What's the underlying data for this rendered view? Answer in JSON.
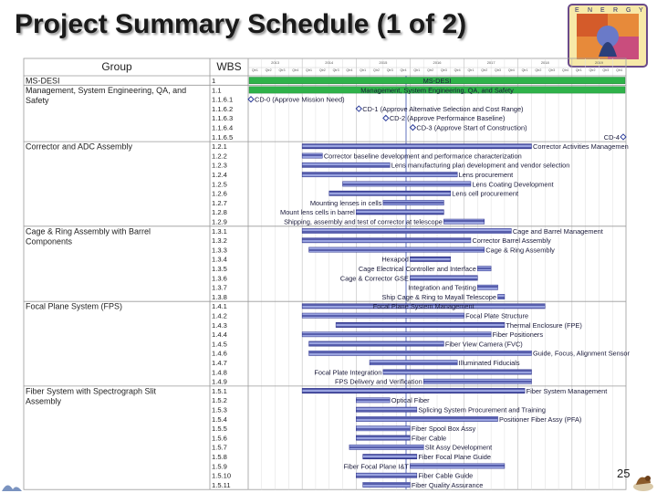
{
  "title": "Project Summary Schedule (1 of 2)",
  "page_number": "25",
  "logo": {
    "letters": [
      "E",
      "N",
      "E",
      "R",
      "G",
      "Y"
    ]
  },
  "headers": {
    "group": "Group",
    "wbs": "WBS"
  },
  "timeline": {
    "years": [
      "2013",
      "2014",
      "2015",
      "2016",
      "2017",
      "2018",
      "2019"
    ],
    "quarters": [
      "Qtr1",
      "Qtr2",
      "Qtr3",
      "Qtr4"
    ]
  },
  "groups": [
    {
      "name": "MS-DESI",
      "rows": [
        0
      ]
    },
    {
      "name": "Management, System Engineering, QA, and Safety",
      "rows": [
        1,
        2,
        3,
        4,
        5,
        6
      ]
    },
    {
      "name": "Corrector and ADC Assembly",
      "rows": [
        7,
        8,
        9,
        10,
        11,
        12,
        13,
        14,
        15
      ]
    },
    {
      "name": "Cage & Ring Assembly with Barrel Components",
      "rows": [
        16,
        17,
        18,
        19,
        20,
        21,
        22,
        23
      ]
    },
    {
      "name": "Focal Plane System (FPS)",
      "rows": [
        24,
        25,
        26,
        27,
        28,
        29,
        30,
        31,
        32
      ]
    },
    {
      "name": "Fiber System with Spectrograph Slit Assembly",
      "rows": [
        33,
        34,
        35,
        36,
        37,
        38,
        39,
        40,
        41,
        42,
        43
      ]
    }
  ],
  "rows": [
    {
      "wbs": "1",
      "type": "summary",
      "start": 0,
      "end": 28,
      "label": "MS-DESI",
      "label_pos": "on"
    },
    {
      "wbs": "1.1",
      "type": "summary",
      "start": 0,
      "end": 28,
      "label": "Management, System Engineering, QA, and Safety",
      "label_pos": "on"
    },
    {
      "wbs": "1.1.6.1",
      "type": "milestone",
      "start": 0,
      "end": 0,
      "label": "CD-0 (Approve Mission Need)",
      "label_pos": "right"
    },
    {
      "wbs": "1.1.6.2",
      "type": "milestone",
      "start": 8,
      "end": 8,
      "label": "CD-1 (Approve Alternative Selection and Cost Range)",
      "label_pos": "right"
    },
    {
      "wbs": "1.1.6.3",
      "type": "milestone",
      "start": 10,
      "end": 10,
      "label": "CD-2 (Approve Performance Baseline)",
      "label_pos": "right"
    },
    {
      "wbs": "1.1.6.4",
      "type": "milestone",
      "start": 12,
      "end": 12,
      "label": "CD-3 (Approve Start of Construction)",
      "label_pos": "right"
    },
    {
      "wbs": "1.1.6.5",
      "type": "milestone",
      "start": 28,
      "end": 28,
      "label": "CD-4",
      "label_pos": "left"
    },
    {
      "wbs": "1.2.1",
      "type": "bar",
      "start": 4,
      "end": 21,
      "label": "Corrector Activities Managemen",
      "label_pos": "right"
    },
    {
      "wbs": "1.2.2",
      "type": "bar",
      "start": 4,
      "end": 5.5,
      "label": "Corrector baseline development and performance characterization",
      "label_pos": "right"
    },
    {
      "wbs": "1.2.3",
      "type": "bar",
      "start": 4,
      "end": 10.5,
      "label": "Lens manufacturing plan development and vendor selection",
      "label_pos": "right"
    },
    {
      "wbs": "1.2.4",
      "type": "bar",
      "start": 4,
      "end": 15.5,
      "label": "Lens procurement",
      "label_pos": "right"
    },
    {
      "wbs": "1.2.5",
      "type": "bar",
      "start": 7,
      "end": 16.5,
      "label": "Lens Coating Development",
      "label_pos": "right"
    },
    {
      "wbs": "1.2.6",
      "type": "bar",
      "start": 6,
      "end": 15,
      "label": "Lens cell procurement",
      "label_pos": "right"
    },
    {
      "wbs": "1.2.7",
      "type": "bar",
      "start": 10,
      "end": 14.5,
      "label": "Mounting lenses in cells",
      "label_pos": "left"
    },
    {
      "wbs": "1.2.8",
      "type": "bar",
      "start": 8,
      "end": 14.5,
      "label": "Mount lens cells in barrel",
      "label_pos": "left"
    },
    {
      "wbs": "1.2.9",
      "type": "bar",
      "start": 14.5,
      "end": 17.5,
      "label": "Shipping, assembly and test of corrector at telescope",
      "label_pos": "left"
    },
    {
      "wbs": "1.3.1",
      "type": "bar",
      "start": 4,
      "end": 19.5,
      "label": "Cage and Barrel Management",
      "label_pos": "right"
    },
    {
      "wbs": "1.3.2",
      "type": "bar",
      "start": 4,
      "end": 16.5,
      "label": "Corrector Barrel Assembly",
      "label_pos": "right"
    },
    {
      "wbs": "1.3.3",
      "type": "bar",
      "start": 4.5,
      "end": 17.5,
      "label": "Cage & Ring Assembly",
      "label_pos": "right"
    },
    {
      "wbs": "1.3.4",
      "type": "bar",
      "start": 12,
      "end": 15,
      "label": "Hexapod",
      "label_pos": "left"
    },
    {
      "wbs": "1.3.5",
      "type": "bar",
      "start": 17,
      "end": 18,
      "label": "Cage Electrical Controller and Interface",
      "label_pos": "left"
    },
    {
      "wbs": "1.3.6",
      "type": "bar",
      "start": 12,
      "end": 17,
      "label": "Cage & Corrector GSE",
      "label_pos": "left"
    },
    {
      "wbs": "1.3.7",
      "type": "bar",
      "start": 17,
      "end": 18.5,
      "label": "Integration and Testing",
      "label_pos": "left"
    },
    {
      "wbs": "1.3.8",
      "type": "bar",
      "start": 18.5,
      "end": 19,
      "label": "Ship Cage & Ring to Mayall Telescope",
      "label_pos": "left"
    },
    {
      "wbs": "1.4.1",
      "type": "bar",
      "start": 4,
      "end": 22,
      "label": "Focal Plane System Management",
      "label_pos": "on"
    },
    {
      "wbs": "1.4.2",
      "type": "bar",
      "start": 4,
      "end": 16,
      "label": "Focal Plate Structure",
      "label_pos": "right"
    },
    {
      "wbs": "1.4.3",
      "type": "bar",
      "start": 6.5,
      "end": 19,
      "label": "Thermal Enclosure (FPE)",
      "label_pos": "right"
    },
    {
      "wbs": "1.4.4",
      "type": "bar",
      "start": 4,
      "end": 18,
      "label": "Fiber Positioners",
      "label_pos": "right"
    },
    {
      "wbs": "1.4.5",
      "type": "bar",
      "start": 4.5,
      "end": 14.5,
      "label": "Fiber View Camera (FVC)",
      "label_pos": "right"
    },
    {
      "wbs": "1.4.6",
      "type": "bar",
      "start": 4.5,
      "end": 21,
      "label": "Guide, Focus, Alignment Sensor",
      "label_pos": "right"
    },
    {
      "wbs": "1.4.7",
      "type": "bar",
      "start": 9,
      "end": 15.5,
      "label": "Illuminated Fiducials",
      "label_pos": "right"
    },
    {
      "wbs": "1.4.8",
      "type": "bar",
      "start": 10,
      "end": 21,
      "label": "Focal Plate Integration",
      "label_pos": "left"
    },
    {
      "wbs": "1.4.9",
      "type": "bar",
      "start": 13,
      "end": 21,
      "label": "FPS Delivery and Verification",
      "label_pos": "left"
    },
    {
      "wbs": "1.5.1",
      "type": "bar",
      "start": 4,
      "end": 20.5,
      "label": "Fiber System Management",
      "label_pos": "right"
    },
    {
      "wbs": "1.5.2",
      "type": "bar",
      "start": 8,
      "end": 10.5,
      "label": "Optical Fiber",
      "label_pos": "right"
    },
    {
      "wbs": "1.5.3",
      "type": "bar",
      "start": 8,
      "end": 12.5,
      "label": "Splicing System Procurement and Training",
      "label_pos": "right"
    },
    {
      "wbs": "1.5.4",
      "type": "bar",
      "start": 8,
      "end": 18.5,
      "label": "Positioner Fiber Assy (PFA)",
      "label_pos": "right"
    },
    {
      "wbs": "1.5.5",
      "type": "bar",
      "start": 8,
      "end": 12,
      "label": "Fiber Spool Box Assy",
      "label_pos": "right"
    },
    {
      "wbs": "1.5.6",
      "type": "bar",
      "start": 8,
      "end": 12,
      "label": "Fiber Cable",
      "label_pos": "right"
    },
    {
      "wbs": "1.5.7",
      "type": "bar",
      "start": 7.5,
      "end": 13,
      "label": "Slit Assy Development",
      "label_pos": "right"
    },
    {
      "wbs": "1.5.8",
      "type": "bar",
      "start": 8.5,
      "end": 12.5,
      "label": "Fiber Focal Plane Guide",
      "label_pos": "right"
    },
    {
      "wbs": "1.5.9",
      "type": "bar",
      "start": 12,
      "end": 19,
      "label": "Fiber Focal Plane I&T",
      "label_pos": "left"
    },
    {
      "wbs": "1.5.10",
      "type": "bar",
      "start": 8,
      "end": 12.5,
      "label": "Fiber Cable Guide",
      "label_pos": "right"
    },
    {
      "wbs": "1.5.11",
      "type": "bar",
      "start": 8.5,
      "end": 12,
      "label": "Fiber Quality Assurance",
      "label_pos": "right"
    }
  ],
  "colors": {
    "summary": "#2fb24a",
    "bar_fill": "#9aa4e0",
    "bar_stripe": "#2a2f8a",
    "milestone": "#2a3b9a",
    "grid": "#c8c8c8",
    "today_line": "#3a4fb0"
  }
}
